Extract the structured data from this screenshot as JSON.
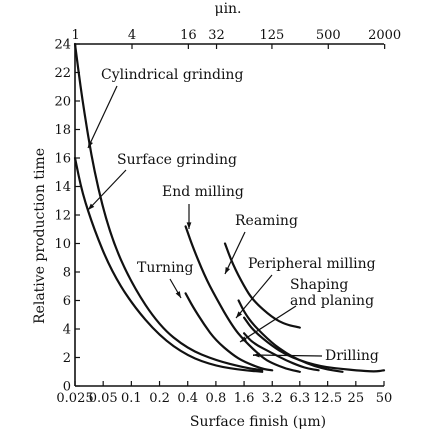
{
  "chart_data": {
    "type": "line",
    "xlabel": "Surface finish (μm)",
    "ylabel": "Relative production time",
    "x2label": "μin.",
    "ylim": [
      0,
      24
    ],
    "xscale": "log",
    "x_ticks": [
      "0.025",
      "0.05",
      "0.1",
      "0.2",
      "0.4",
      "0.8",
      "1.6",
      "3.2",
      "6.3",
      "12.5",
      "25",
      "50"
    ],
    "x2_ticks": [
      "1",
      "4",
      "16",
      "32",
      "125",
      "500",
      "2000"
    ],
    "y_ticks": [
      0,
      2,
      4,
      6,
      8,
      10,
      12,
      14,
      16,
      18,
      20,
      22,
      24
    ],
    "grid": false,
    "series": [
      {
        "name": "Cylindrical grinding",
        "x": [
          0.025,
          0.03,
          0.04,
          0.06,
          0.1,
          0.2,
          0.4,
          0.8,
          1.6,
          2.5
        ],
        "y": [
          24,
          20,
          15,
          10.5,
          7.2,
          4.2,
          2.6,
          1.8,
          1.3,
          1.1
        ]
      },
      {
        "name": "Surface grinding",
        "x": [
          0.025,
          0.03,
          0.04,
          0.06,
          0.1,
          0.2,
          0.4,
          0.8,
          1.6,
          2.5
        ],
        "y": [
          16,
          13.5,
          11,
          8.2,
          5.8,
          3.5,
          2.1,
          1.4,
          1.1,
          1.0
        ]
      },
      {
        "name": "Turning",
        "x": [
          0.38,
          0.45,
          0.6,
          0.8,
          1.2,
          1.6,
          2.5,
          3.2
        ],
        "y": [
          6.5,
          5.6,
          4.3,
          3.2,
          2.2,
          1.7,
          1.2,
          1.1
        ]
      },
      {
        "name": "End milling",
        "x": [
          0.38,
          0.45,
          0.6,
          0.8,
          1.2,
          1.6,
          2.5,
          3.2,
          4.5,
          6.3
        ],
        "y": [
          11.2,
          9.8,
          7.8,
          6.2,
          4.2,
          3.2,
          2.0,
          1.6,
          1.2,
          1.0
        ]
      },
      {
        "name": "Reaming",
        "x": [
          1.0,
          1.2,
          1.6,
          2.0,
          3.2,
          4.5,
          6.3
        ],
        "y": [
          10,
          8.6,
          7.0,
          6.0,
          4.8,
          4.3,
          4.1
        ]
      },
      {
        "name": "Peripheral milling",
        "x": [
          1.6,
          2.0,
          3.2,
          4.5,
          6.3,
          9,
          12.5,
          18,
          25,
          40,
          50
        ],
        "y": [
          4.8,
          3.9,
          2.8,
          2.2,
          1.8,
          1.5,
          1.3,
          1.2,
          1.1,
          1.0,
          1.1
        ]
      },
      {
        "name": "Shaping and planing",
        "x": [
          1.4,
          1.6,
          2.0,
          3.2,
          4.5,
          6.3,
          9,
          12.5,
          18
        ],
        "y": [
          6.0,
          5.2,
          4.3,
          3.0,
          2.3,
          1.8,
          1.4,
          1.15,
          1.0
        ]
      },
      {
        "name": "Drilling",
        "x": [
          1.6,
          2.0,
          3.2,
          4.5,
          6.3,
          8,
          10
        ],
        "y": [
          3.7,
          3.0,
          2.3,
          1.8,
          1.4,
          1.2,
          1.1
        ]
      }
    ]
  }
}
